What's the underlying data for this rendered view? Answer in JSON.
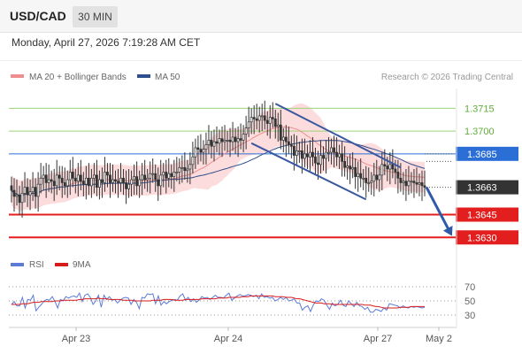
{
  "header": {
    "symbol": "USD/CAD",
    "timeframe": "30 MIN",
    "datetime": "Monday, April 27, 2026 7:19:28 AM CET"
  },
  "legend": {
    "ma20": "MA 20 + Bollinger Bands",
    "ma50": "MA 50",
    "ma20_color": "#ef8e8e",
    "ma50_color": "#2f4e8c"
  },
  "credit": "Research © 2026 Trading Central",
  "rsi_legend": {
    "rsi": "RSI",
    "ma": "9MA",
    "rsi_color": "#5b7bd6",
    "ma_color": "#d81b1b"
  },
  "colors": {
    "candle_up": "#ffffff",
    "candle_down": "#333333",
    "bollinger_fill": "#fbd6d6",
    "resistance": "#9cd37a",
    "pivot": "#2b6fd6",
    "support": "#e31e1e",
    "trend_channel": "#3a58a0"
  },
  "chart_data": [
    {
      "type": "candlestick",
      "title": "USD/CAD",
      "x_tick_labels": [
        "Apr 23",
        "Apr 24",
        "Apr 27",
        "May 2"
      ],
      "ylim": [
        1.3622,
        1.3728
      ],
      "levels": [
        {
          "label": "1.3715",
          "value": 1.3715,
          "kind": "resistance",
          "color": "#9cd37a"
        },
        {
          "label": "1.3700",
          "value": 1.37,
          "kind": "resistance",
          "color": "#9cd37a"
        },
        {
          "label": "1.3685",
          "value": 1.3685,
          "kind": "pivot",
          "color": "#2b6fd6"
        },
        {
          "label": "1.3663",
          "value": 1.3663,
          "kind": "last",
          "color": "#333333"
        },
        {
          "label": "1.3645",
          "value": 1.3645,
          "kind": "support",
          "color": "#e31e1e"
        },
        {
          "label": "1.3630",
          "value": 1.363,
          "kind": "support",
          "color": "#e31e1e"
        }
      ],
      "close": [
        1.3661,
        1.3657,
        1.3658,
        1.3653,
        1.3659,
        1.3663,
        1.3658,
        1.366,
        1.3663,
        1.3657,
        1.3665,
        1.3669,
        1.3671,
        1.3666,
        1.3668,
        1.3667,
        1.3664,
        1.3671,
        1.3669,
        1.3666,
        1.3664,
        1.3668,
        1.3673,
        1.3669,
        1.3667,
        1.3671,
        1.3667,
        1.3665,
        1.3669,
        1.3664,
        1.3669,
        1.3671,
        1.3663,
        1.3668,
        1.3666,
        1.3673,
        1.3671,
        1.3666,
        1.3668,
        1.3667,
        1.3666,
        1.3669,
        1.3666,
        1.3662,
        1.3665,
        1.3668,
        1.367,
        1.3664,
        1.3668,
        1.3671,
        1.3668,
        1.3669,
        1.3672,
        1.3672,
        1.3668,
        1.3664,
        1.3671,
        1.3673,
        1.3669,
        1.3672,
        1.367,
        1.3673,
        1.3673,
        1.3676,
        1.3676,
        1.3674,
        1.3675,
        1.3678,
        1.3683,
        1.3689,
        1.3688,
        1.3686,
        1.3688,
        1.3691,
        1.3694,
        1.369,
        1.3693,
        1.3692,
        1.3695,
        1.3693,
        1.3694,
        1.3694,
        1.3693,
        1.3696,
        1.3693,
        1.3695,
        1.3694,
        1.3698,
        1.3702,
        1.3706,
        1.3709,
        1.3708,
        1.3707,
        1.371,
        1.371,
        1.3707,
        1.3705,
        1.3709,
        1.3708,
        1.3703,
        1.3704,
        1.3694,
        1.3696,
        1.3693,
        1.3691,
        1.369,
        1.3684,
        1.3687,
        1.3687,
        1.3682,
        1.3685,
        1.3683,
        1.3686,
        1.3683,
        1.3679,
        1.3678,
        1.3684,
        1.3682,
        1.3686,
        1.3686,
        1.3689,
        1.3686,
        1.3683,
        1.3685,
        1.368,
        1.3676,
        1.3677,
        1.3675,
        1.3676,
        1.367,
        1.3672,
        1.3669,
        1.3669,
        1.3666,
        1.3666,
        1.3667,
        1.3671,
        1.3668,
        1.3671,
        1.3678,
        1.3677,
        1.3675,
        1.3678,
        1.3675,
        1.3673,
        1.3669,
        1.3666,
        1.3667,
        1.3664,
        1.3667,
        1.3667,
        1.3666,
        1.3665,
        1.3666,
        1.3664,
        1.3663
      ],
      "rsi": {
        "ylim": [
          20,
          80
        ],
        "ticks": [
          70,
          50,
          30
        ],
        "rsi": [
          45,
          49,
          43,
          43,
          55,
          40,
          52,
          51,
          58,
          36,
          41,
          45,
          50,
          52,
          51,
          56,
          49,
          40,
          52,
          50,
          56,
          54,
          56,
          57,
          55,
          61,
          49,
          58,
          60,
          55,
          45,
          50,
          58,
          41,
          58,
          52,
          56,
          51,
          52,
          47,
          51,
          54,
          55,
          54,
          45,
          52,
          48,
          39,
          55,
          54,
          60,
          59,
          60,
          46,
          57,
          44,
          49,
          46,
          49,
          51,
          52,
          51,
          57,
          60,
          51,
          55,
          49,
          53,
          48,
          51,
          56,
          54,
          55,
          52,
          55,
          58,
          55,
          55,
          54,
          58,
          61,
          51,
          54,
          57,
          59,
          57,
          57,
          59,
          58,
          56,
          58,
          53,
          60,
          55,
          56,
          54,
          55,
          50,
          52,
          55,
          52,
          55,
          50,
          51,
          53,
          47,
          47,
          37,
          41,
          43,
          35,
          44,
          50,
          49,
          53,
          51,
          44,
          38,
          47,
          43,
          45,
          51,
          44,
          42,
          50,
          46,
          42,
          48,
          43,
          42,
          38,
          41,
          34,
          34,
          38,
          37,
          35,
          40,
          37,
          46,
          45,
          44,
          43,
          40,
          43,
          41,
          40,
          42,
          41,
          42,
          41,
          40,
          41
        ],
        "ma": [
          45,
          45,
          45,
          45,
          46,
          46,
          46,
          47,
          48,
          48,
          48,
          49,
          49,
          49,
          49,
          49,
          50,
          50,
          50,
          51,
          51,
          51,
          51,
          51,
          51,
          52,
          52,
          53,
          53,
          53,
          53,
          53,
          54,
          53,
          53,
          53,
          52,
          52,
          52,
          52,
          52,
          51,
          51,
          51,
          51,
          50,
          50,
          50,
          50,
          50,
          50,
          50,
          51,
          51,
          51,
          51,
          52,
          52,
          52,
          52,
          51,
          51,
          51,
          51,
          52,
          52,
          52,
          52,
          52,
          52,
          53,
          53,
          53,
          53,
          53,
          53,
          54,
          54,
          54,
          54,
          55,
          55,
          55,
          55,
          55,
          56,
          56,
          56,
          57,
          57,
          57,
          57,
          57,
          57,
          57,
          57,
          57,
          56,
          56,
          56,
          56,
          55,
          55,
          55,
          54,
          53,
          53,
          52,
          51,
          50,
          49,
          48,
          47,
          47,
          47,
          46,
          46,
          46,
          45,
          45,
          45,
          45,
          45,
          45,
          45,
          45,
          45,
          45,
          45,
          45,
          44,
          44,
          44,
          43,
          42,
          42,
          41,
          40,
          40,
          40,
          40,
          40,
          40,
          41,
          41,
          41,
          41,
          42,
          42,
          42,
          42,
          42,
          42
        ]
      }
    }
  ]
}
